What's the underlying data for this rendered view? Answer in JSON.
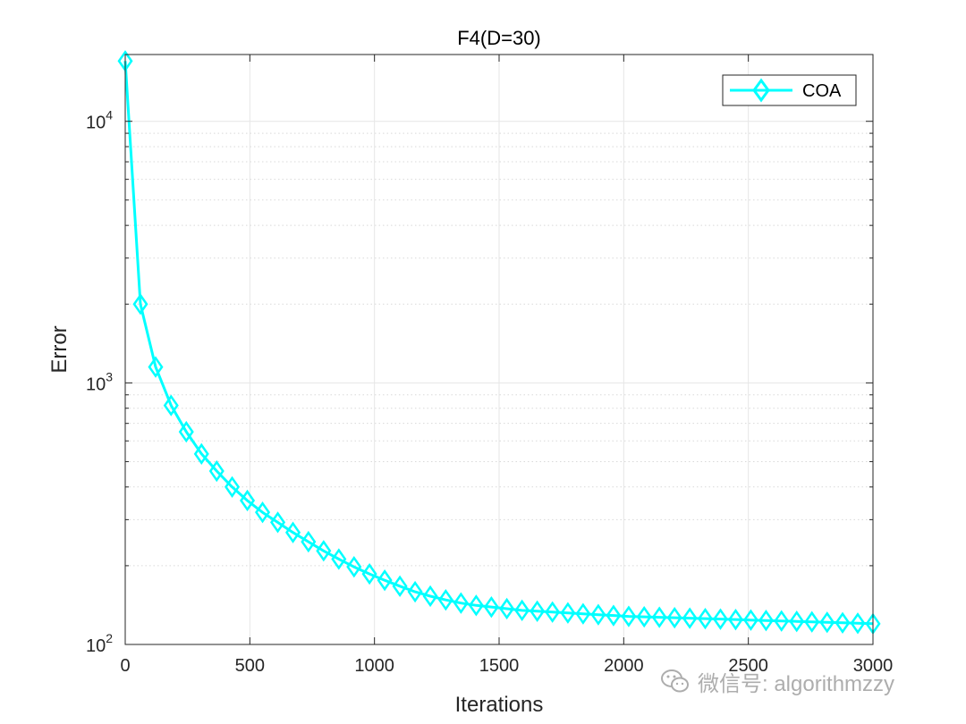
{
  "chart_data": {
    "type": "line",
    "title": "F4(D=30)",
    "xlabel": "Iterations",
    "ylabel": "Error",
    "xlim": [
      0,
      3000
    ],
    "ylim": [
      100,
      18000
    ],
    "yscale": "log",
    "grid": true,
    "legend_position": "top-right",
    "x_ticks": [
      "0",
      "500",
      "1000",
      "1500",
      "2000",
      "2500",
      "3000"
    ],
    "y_ticks": [
      {
        "base": "10",
        "exp": "2"
      },
      {
        "base": "10",
        "exp": "3"
      },
      {
        "base": "10",
        "exp": "4"
      }
    ],
    "series": [
      {
        "name": "COA",
        "color": "#00ffff",
        "marker": "diamond",
        "x": [
          0,
          61,
          122,
          184,
          245,
          306,
          367,
          429,
          490,
          551,
          612,
          673,
          735,
          796,
          857,
          918,
          980,
          1041,
          1102,
          1163,
          1224,
          1286,
          1347,
          1408,
          1469,
          1531,
          1592,
          1653,
          1714,
          1776,
          1837,
          1898,
          1959,
          2020,
          2082,
          2143,
          2204,
          2265,
          2327,
          2388,
          2449,
          2510,
          2571,
          2633,
          2694,
          2755,
          2816,
          2878,
          2939,
          3000
        ],
        "y": [
          17000,
          2000,
          1150,
          820,
          650,
          535,
          460,
          400,
          355,
          320,
          293,
          268,
          247,
          228,
          212,
          198,
          186,
          176,
          167,
          159,
          153,
          148,
          144,
          141,
          139,
          137,
          135,
          134,
          133,
          132,
          131,
          130,
          129,
          128,
          127.5,
          127,
          126.5,
          126,
          125.5,
          125,
          124.5,
          124,
          123.5,
          123,
          122.5,
          122,
          121.5,
          121,
          120.5,
          120
        ]
      }
    ]
  },
  "watermark": {
    "text": "微信号: algorithmzzy"
  }
}
